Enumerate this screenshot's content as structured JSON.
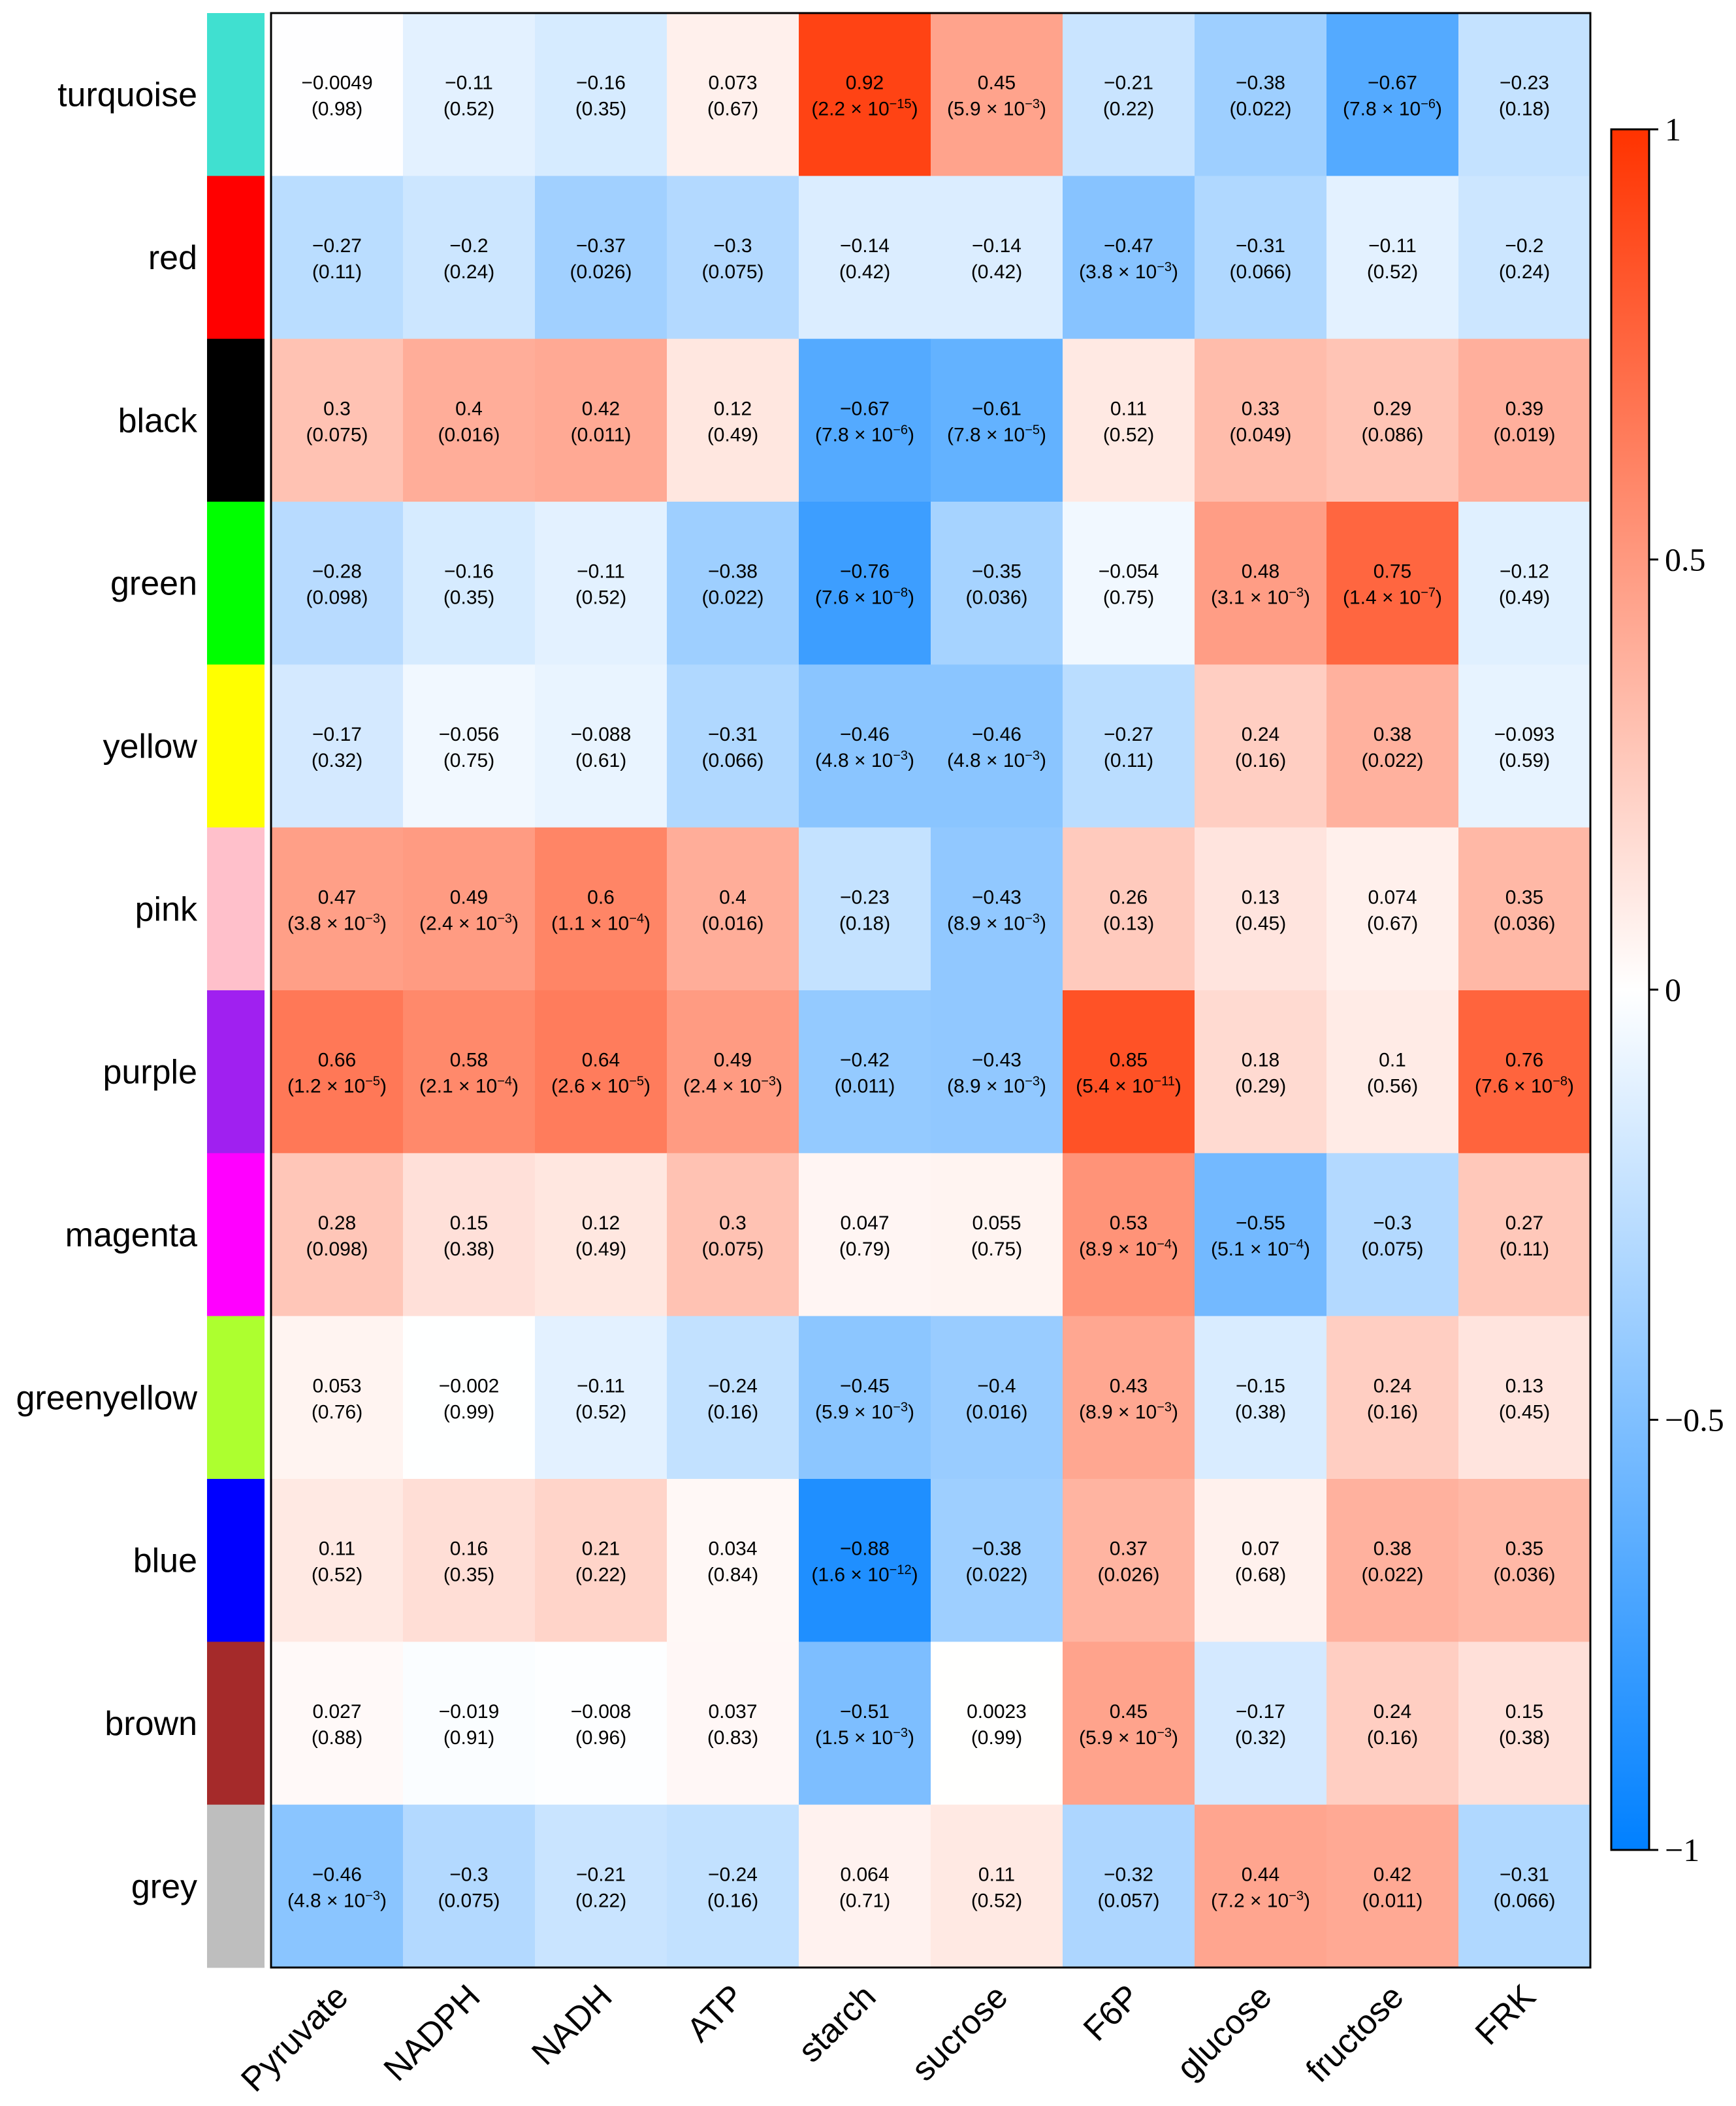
{
  "chart_data": {
    "type": "heatmap",
    "title": "",
    "rows": [
      "turquoise",
      "red",
      "black",
      "green",
      "yellow",
      "pink",
      "purple",
      "magenta",
      "greenyellow",
      "blue",
      "brown",
      "grey"
    ],
    "row_colors": [
      "#40E0D0",
      "#FF0000",
      "#000000",
      "#00FF00",
      "#FFFF00",
      "#FFC0CB",
      "#A020F0",
      "#FF00FF",
      "#ADFF2F",
      "#0000FF",
      "#A52A2A",
      "#BEBEBE"
    ],
    "columns": [
      "Pyruvate",
      "NADPH",
      "NADH",
      "ATP",
      "starch",
      "sucrose",
      "F6P",
      "glucose",
      "fructose",
      "FRK"
    ],
    "values": [
      [
        -0.0049,
        -0.11,
        -0.16,
        0.073,
        0.92,
        0.45,
        -0.21,
        -0.38,
        -0.67,
        -0.23
      ],
      [
        -0.27,
        -0.2,
        -0.37,
        -0.3,
        -0.14,
        -0.14,
        -0.47,
        -0.31,
        -0.11,
        -0.2
      ],
      [
        0.3,
        0.4,
        0.42,
        0.12,
        -0.67,
        -0.61,
        0.11,
        0.33,
        0.29,
        0.39
      ],
      [
        -0.28,
        -0.16,
        -0.11,
        -0.38,
        -0.76,
        -0.35,
        -0.054,
        0.48,
        0.75,
        -0.12
      ],
      [
        -0.17,
        -0.056,
        -0.088,
        -0.31,
        -0.46,
        -0.46,
        -0.27,
        0.24,
        0.38,
        -0.093
      ],
      [
        0.47,
        0.49,
        0.6,
        0.4,
        -0.23,
        -0.43,
        0.26,
        0.13,
        0.074,
        0.35
      ],
      [
        0.66,
        0.58,
        0.64,
        0.49,
        -0.42,
        -0.43,
        0.85,
        0.18,
        0.1,
        0.76
      ],
      [
        0.28,
        0.15,
        0.12,
        0.3,
        0.047,
        0.055,
        0.53,
        -0.55,
        -0.3,
        0.27
      ],
      [
        0.053,
        -0.002,
        -0.11,
        -0.24,
        -0.45,
        -0.4,
        0.43,
        -0.15,
        0.24,
        0.13
      ],
      [
        0.11,
        0.16,
        0.21,
        0.034,
        -0.88,
        -0.38,
        0.37,
        0.07,
        0.38,
        0.35
      ],
      [
        0.027,
        -0.019,
        -0.008,
        0.037,
        -0.51,
        0.0023,
        0.45,
        -0.17,
        0.24,
        0.15
      ],
      [
        -0.46,
        -0.3,
        -0.21,
        -0.24,
        0.064,
        0.11,
        -0.32,
        0.44,
        0.42,
        -0.31
      ]
    ],
    "value_labels": [
      [
        "−0.0049",
        "−0.11",
        "−0.16",
        "0.073",
        "0.92",
        "0.45",
        "−0.21",
        "−0.38",
        "−0.67",
        "−0.23"
      ],
      [
        "−0.27",
        "−0.2",
        "−0.37",
        "−0.3",
        "−0.14",
        "−0.14",
        "−0.47",
        "−0.31",
        "−0.11",
        "−0.2"
      ],
      [
        "0.3",
        "0.4",
        "0.42",
        "0.12",
        "−0.67",
        "−0.61",
        "0.11",
        "0.33",
        "0.29",
        "0.39"
      ],
      [
        "−0.28",
        "−0.16",
        "−0.11",
        "−0.38",
        "−0.76",
        "−0.35",
        "−0.054",
        "0.48",
        "0.75",
        "−0.12"
      ],
      [
        "−0.17",
        "−0.056",
        "−0.088",
        "−0.31",
        "−0.46",
        "−0.46",
        "−0.27",
        "0.24",
        "0.38",
        "−0.093"
      ],
      [
        "0.47",
        "0.49",
        "0.6",
        "0.4",
        "−0.23",
        "−0.43",
        "0.26",
        "0.13",
        "0.074",
        "0.35"
      ],
      [
        "0.66",
        "0.58",
        "0.64",
        "0.49",
        "−0.42",
        "−0.43",
        "0.85",
        "0.18",
        "0.1",
        "0.76"
      ],
      [
        "0.28",
        "0.15",
        "0.12",
        "0.3",
        "0.047",
        "0.055",
        "0.53",
        "−0.55",
        "−0.3",
        "0.27"
      ],
      [
        "0.053",
        "−0.002",
        "−0.11",
        "−0.24",
        "−0.45",
        "−0.4",
        "0.43",
        "−0.15",
        "0.24",
        "0.13"
      ],
      [
        "0.11",
        "0.16",
        "0.21",
        "0.034",
        "−0.88",
        "−0.38",
        "0.37",
        "0.07",
        "0.38",
        "0.35"
      ],
      [
        "0.027",
        "−0.019",
        "−0.008",
        "0.037",
        "−0.51",
        "0.0023",
        "0.45",
        "−0.17",
        "0.24",
        "0.15"
      ],
      [
        "−0.46",
        "−0.3",
        "−0.21",
        "−0.24",
        "0.064",
        "0.11",
        "−0.32",
        "0.44",
        "0.42",
        "−0.31"
      ]
    ],
    "pvalues": [
      [
        "0.98",
        "0.52",
        "0.35",
        "0.67",
        "2.2 × 10^−15",
        "5.9 × 10^−3",
        "0.22",
        "0.022",
        "7.8 × 10^−6",
        "0.18"
      ],
      [
        "0.11",
        "0.24",
        "0.026",
        "0.075",
        "0.42",
        "0.42",
        "3.8 × 10^−3",
        "0.066",
        "0.52",
        "0.24"
      ],
      [
        "0.075",
        "0.016",
        "0.011",
        "0.49",
        "7.8 × 10^−6",
        "7.8 × 10^−5",
        "0.52",
        "0.049",
        "0.086",
        "0.019"
      ],
      [
        "0.098",
        "0.35",
        "0.52",
        "0.022",
        "7.6 × 10^−8",
        "0.036",
        "0.75",
        "3.1 × 10^−3",
        "1.4 × 10^−7",
        "0.49"
      ],
      [
        "0.32",
        "0.75",
        "0.61",
        "0.066",
        "4.8 × 10^−3",
        "4.8 × 10^−3",
        "0.11",
        "0.16",
        "0.022",
        "0.59"
      ],
      [
        "3.8 × 10^−3",
        "2.4 × 10^−3",
        "1.1 × 10^−4",
        "0.016",
        "0.18",
        "8.9 × 10^−3",
        "0.13",
        "0.45",
        "0.67",
        "0.036"
      ],
      [
        "1.2 × 10^−5",
        "2.1 × 10^−4",
        "2.6 × 10^−5",
        "2.4 × 10^−3",
        "0.011",
        "8.9 × 10^−3",
        "5.4 × 10^−11",
        "0.29",
        "0.56",
        "7.6 × 10^−8"
      ],
      [
        "0.098",
        "0.38",
        "0.49",
        "0.075",
        "0.79",
        "0.75",
        "8.9 × 10^−4",
        "5.1 × 10^−4",
        "0.075",
        "0.11"
      ],
      [
        "0.76",
        "0.99",
        "0.52",
        "0.16",
        "5.9 × 10^−3",
        "0.016",
        "8.9 × 10^−3",
        "0.38",
        "0.16",
        "0.45"
      ],
      [
        "0.52",
        "0.35",
        "0.22",
        "0.84",
        "1.6 × 10^−12",
        "0.022",
        "0.026",
        "0.68",
        "0.022",
        "0.036"
      ],
      [
        "0.88",
        "0.91",
        "0.96",
        "0.83",
        "1.5 × 10^−3",
        "0.99",
        "5.9 × 10^−3",
        "0.32",
        "0.16",
        "0.38"
      ],
      [
        "4.8 × 10^−3",
        "0.075",
        "0.22",
        "0.16",
        "0.71",
        "0.52",
        "0.057",
        "7.2 × 10^−3",
        "0.011",
        "0.066"
      ]
    ],
    "colorbar": {
      "range": [
        -1,
        1
      ],
      "ticks": [
        1,
        0.5,
        0,
        -0.5,
        -1
      ],
      "tick_labels": [
        "1",
        "0.5",
        "0",
        "−0.5",
        "−1"
      ],
      "low_color": "#0080FF",
      "mid_color": "#FFFFFF",
      "high_color": "#FF3300"
    }
  }
}
